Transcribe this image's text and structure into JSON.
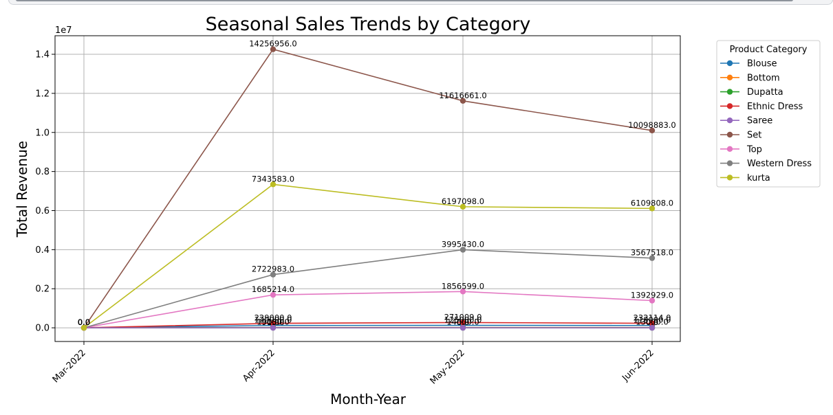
{
  "chart_data": {
    "type": "line",
    "title": "Seasonal Sales Trends by Category",
    "xlabel": "Month-Year",
    "ylabel": "Total Revenue",
    "y_offset_label": "1e7",
    "categories": [
      "Mar-2022",
      "Apr-2022",
      "May-2022",
      "Jun-2022"
    ],
    "ylim": [
      -700000,
      14950000
    ],
    "yticks": [
      0,
      2000000,
      4000000,
      6000000,
      8000000,
      10000000,
      12000000,
      14000000
    ],
    "ytick_labels": [
      "0.0",
      "0.2",
      "0.4",
      "0.6",
      "0.8",
      "1.0",
      "1.2",
      "1.4"
    ],
    "grid": true,
    "legend": {
      "title": "Product Category",
      "placement": "outside right"
    },
    "series": [
      {
        "name": "Blouse",
        "color": "#1f77b4",
        "values": [
          0,
          120000,
          125000,
          118000
        ],
        "labels": [
          "0.0",
          "120000.0",
          "125000.0",
          "118000.0"
        ]
      },
      {
        "name": "Bottom",
        "color": "#ff7f0e",
        "values": [
          0,
          15000,
          14500,
          13000
        ],
        "labels": [
          "0.0",
          "15000.0",
          "14500.0",
          "13000.0"
        ]
      },
      {
        "name": "Dupatta",
        "color": "#2ca02c",
        "values": [
          0,
          915,
          0,
          0
        ],
        "labels": [
          "0.0",
          "915.0",
          "0.0",
          "0.0"
        ]
      },
      {
        "name": "Ethnic Dress",
        "color": "#d62728",
        "values": [
          0,
          229000,
          271009,
          232114
        ],
        "labels": [
          "0.0",
          "229000.0",
          "271009.0",
          "232114.0"
        ]
      },
      {
        "name": "Saree",
        "color": "#9467bd",
        "values": [
          0,
          0,
          0,
          0
        ],
        "labels": [
          "0.0",
          "0.0",
          "0.0",
          "0.0"
        ]
      },
      {
        "name": "Set",
        "color": "#8c564b",
        "values": [
          0,
          14256956,
          11616661,
          10098883
        ],
        "labels": [
          "0.0",
          "14256956.0",
          "11616661.0",
          "10098883.0"
        ]
      },
      {
        "name": "Top",
        "color": "#e377c2",
        "values": [
          0,
          1685214,
          1856599,
          1392929
        ],
        "labels": [
          "0.0",
          "1685214.0",
          "1856599.0",
          "1392929.0"
        ]
      },
      {
        "name": "Western Dress",
        "color": "#7f7f7f",
        "values": [
          0,
          2722983,
          3995430,
          3567518
        ],
        "labels": [
          "0.0",
          "2722983.0",
          "3995430.0",
          "3567518.0"
        ]
      },
      {
        "name": "kurta",
        "color": "#bcbd22",
        "values": [
          0,
          7343583,
          6197098,
          6109808
        ],
        "labels": [
          "0.0",
          "7343583.0",
          "6197098.0",
          "6109808.0"
        ]
      }
    ]
  }
}
